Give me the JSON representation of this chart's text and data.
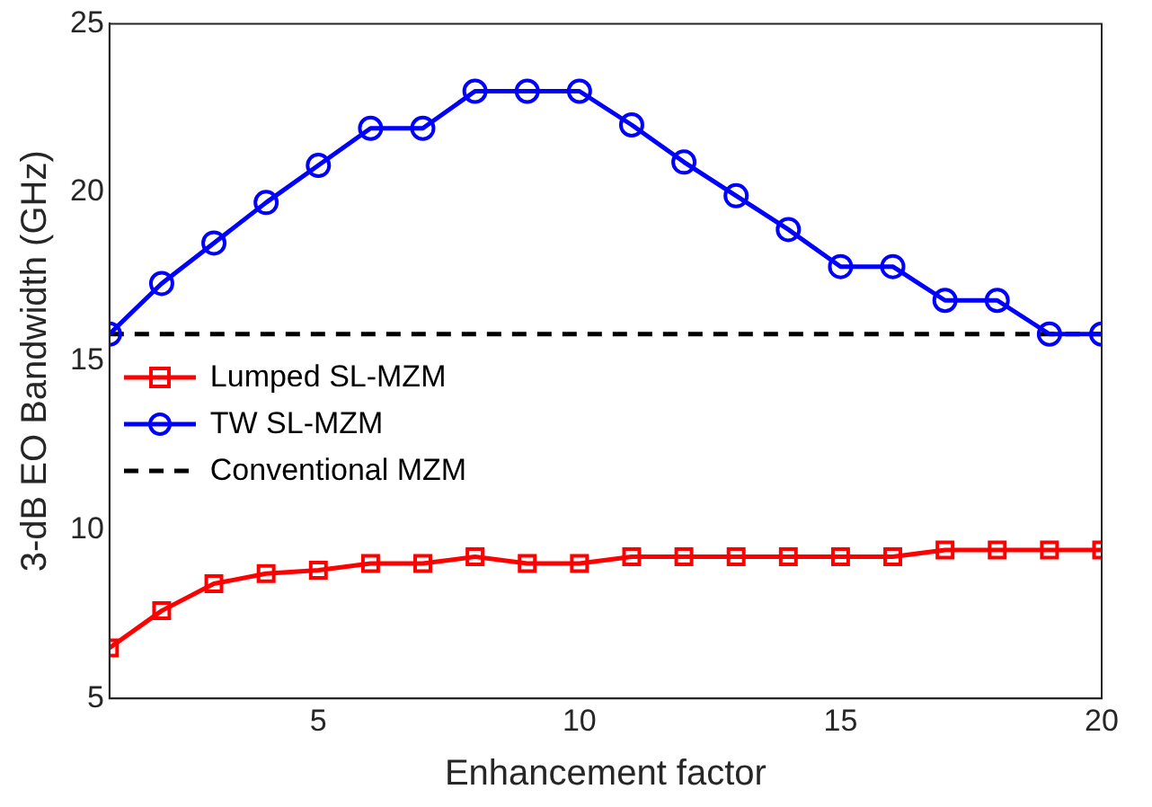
{
  "chart_data": {
    "type": "line",
    "xlabel": "Enhancement factor",
    "ylabel": "3-dB EO Bandwidth (GHz)",
    "x": [
      1,
      2,
      3,
      4,
      5,
      6,
      7,
      8,
      9,
      10,
      11,
      12,
      13,
      14,
      15,
      16,
      17,
      18,
      19,
      20
    ],
    "xlim": [
      1,
      20
    ],
    "xticks": [
      5,
      10,
      15,
      20
    ],
    "ylim": [
      5,
      25
    ],
    "yticks": [
      5,
      10,
      15,
      20,
      25
    ],
    "grid": false,
    "legend": "center left",
    "series": [
      {
        "name": "Lumped SL-MZM",
        "color": "#ff0000",
        "marker": "square",
        "line_style": "solid",
        "values": [
          6.5,
          7.6,
          8.4,
          8.7,
          8.8,
          9.0,
          9.0,
          9.2,
          9.0,
          9.0,
          9.2,
          9.2,
          9.2,
          9.2,
          9.2,
          9.2,
          9.4,
          9.4,
          9.4,
          9.4
        ]
      },
      {
        "name": "TW SL-MZM",
        "color": "#0000ff",
        "marker": "circle",
        "line_style": "solid",
        "values": [
          15.8,
          17.3,
          18.5,
          19.7,
          20.8,
          21.9,
          21.9,
          23.0,
          23.0,
          23.0,
          22.0,
          20.9,
          19.9,
          18.9,
          17.8,
          17.8,
          16.8,
          16.8,
          15.8,
          15.8
        ]
      },
      {
        "name": "Conventional MZM",
        "color": "#000000",
        "marker": "none",
        "line_style": "dashed",
        "values": [
          15.8,
          15.8,
          15.8,
          15.8,
          15.8,
          15.8,
          15.8,
          15.8,
          15.8,
          15.8,
          15.8,
          15.8,
          15.8,
          15.8,
          15.8,
          15.8,
          15.8,
          15.8,
          15.8,
          15.8
        ]
      }
    ]
  }
}
